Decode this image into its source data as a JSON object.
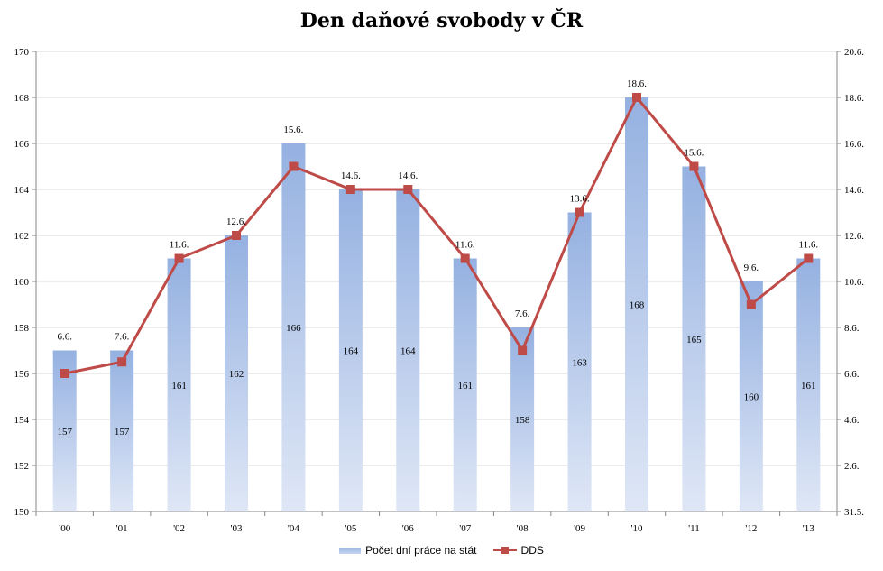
{
  "chart_data": {
    "type": "bar",
    "title": "Den daňové svobody v ČR",
    "categories": [
      "'00",
      "'01",
      "'02",
      "'03",
      "'04",
      "'05",
      "'06",
      "'07",
      "'08",
      "'09",
      "'10",
      "'11",
      "'12",
      "'13"
    ],
    "series": [
      {
        "name": "Počet dní práce na stát",
        "type": "bar",
        "axis": "left",
        "values": [
          157,
          157,
          161,
          162,
          166,
          164,
          164,
          161,
          158,
          163,
          168,
          165,
          160,
          161
        ],
        "labels": [
          "157",
          "157",
          "161",
          "162",
          "166",
          "164",
          "164",
          "161",
          "158",
          "163",
          "168",
          "165",
          "160",
          "161"
        ],
        "color": "#9ab4e2"
      },
      {
        "name": "DDS",
        "type": "line",
        "axis": "right",
        "values": [
          156,
          156.5,
          161,
          162,
          165,
          164,
          164,
          161,
          157,
          163,
          168,
          165,
          159,
          161
        ],
        "labels": [
          "6.6.",
          "7.6.",
          "11.6.",
          "12.6.",
          "15.6.",
          "14.6.",
          "14.6.",
          "11.6.",
          "7.6.",
          "13.6.",
          "18.6.",
          "15.6.",
          "9.6.",
          "11.6."
        ],
        "color": "#be4b48"
      }
    ],
    "ylim": [
      150,
      170
    ],
    "yticks": [
      "150",
      "152",
      "154",
      "156",
      "158",
      "160",
      "162",
      "164",
      "166",
      "168",
      "170"
    ],
    "y2ticks": [
      "31.5.",
      "2.6.",
      "4.6.",
      "6.6.",
      "8.6.",
      "10.6.",
      "12.6.",
      "14.6.",
      "16.6.",
      "18.6.",
      "20.6."
    ],
    "grid": true,
    "legend": "bottom"
  },
  "legend": {
    "bar_label": "Počet dní práce na stát",
    "line_label": "DDS"
  }
}
